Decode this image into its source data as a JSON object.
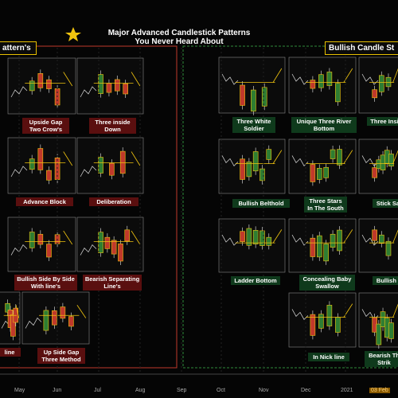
{
  "title": [
    "Major Advanced Candlestick Patterns",
    "You Never Heard About"
  ],
  "sections": [
    {
      "label": "attern's"
    },
    {
      "label": "Bullish Candle St"
    }
  ],
  "patterns": [
    {
      "label": [
        "Upside Gap",
        "Two Crow's"
      ]
    },
    {
      "label": [
        "Three inside",
        "Down"
      ]
    },
    {
      "label": [
        "Advance Block"
      ]
    },
    {
      "label": [
        "Deliberation"
      ]
    },
    {
      "label": [
        "Bullish Side By Side",
        "With line's"
      ]
    },
    {
      "label": [
        "Bearish Separating",
        "Line's"
      ]
    },
    {
      "label": [
        "line"
      ]
    },
    {
      "label": [
        "Up Side Gap",
        "Three Method"
      ]
    },
    {
      "label": [
        "Three White",
        "Soldier"
      ]
    },
    {
      "label": [
        "Unique Three  River",
        "Bottom"
      ]
    },
    {
      "label": [
        "Three Insi"
      ]
    },
    {
      "label": [
        "Bullish Belthold"
      ]
    },
    {
      "label": [
        "Three Stars",
        "In The South"
      ]
    },
    {
      "label": [
        "Stick Sa"
      ]
    },
    {
      "label": [
        "Ladder Bottom"
      ]
    },
    {
      "label": [
        "Concealing Baby",
        "Swallow"
      ]
    },
    {
      "label": [
        "Bullish I"
      ]
    },
    {
      "label": [
        "In Nick line"
      ]
    },
    {
      "label": [
        "Bearish Th",
        "Strik"
      ]
    }
  ],
  "axis": [
    "May",
    "Jun",
    "Jul",
    "Aug",
    "Sep",
    "Oct",
    "Nov",
    "Dec",
    "2021"
  ],
  "date": "03 Feb"
}
